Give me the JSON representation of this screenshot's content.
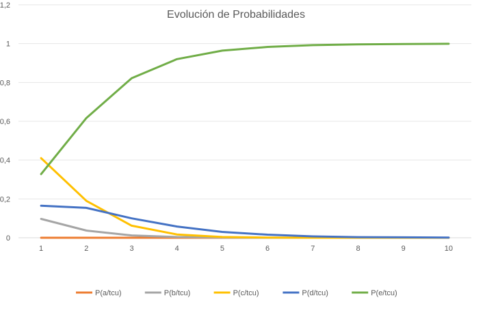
{
  "chart_data": {
    "type": "line",
    "title": "Evolución de Probabilidades",
    "x": [
      "1",
      "2",
      "3",
      "4",
      "5",
      "6",
      "7",
      "8",
      "9",
      "10"
    ],
    "ylim": [
      0,
      1.2
    ],
    "yticks": [
      "0",
      "0,2",
      "0,4",
      "0,6",
      "0,8",
      "1",
      "1,2"
    ],
    "ytick_values": [
      0,
      0.2,
      0.4,
      0.6,
      0.8,
      1.0,
      1.2
    ],
    "grid": true,
    "legend_position": "bottom",
    "series": [
      {
        "name": "P(a/tcu)",
        "color": "#ED7D31",
        "values": [
          0,
          0,
          0,
          0,
          0,
          0,
          0,
          0,
          0,
          0
        ]
      },
      {
        "name": "P(b/tcu)",
        "color": "#A5A5A5",
        "values": [
          0.097,
          0.037,
          0.012,
          0.004,
          0.001,
          0.0,
          0.0,
          0.0,
          0.0,
          0.0
        ]
      },
      {
        "name": "P(c/tcu)",
        "color": "#FFC000",
        "values": [
          0.41,
          0.19,
          0.062,
          0.017,
          0.004,
          0.001,
          0.0,
          0.0,
          0.0,
          0.0
        ]
      },
      {
        "name": "P(d/tcu)",
        "color": "#4472C4",
        "values": [
          0.165,
          0.154,
          0.1,
          0.058,
          0.03,
          0.016,
          0.007,
          0.003,
          0.002,
          0.001
        ]
      },
      {
        "name": "P(e/tcu)",
        "color": "#70AD47",
        "values": [
          0.328,
          0.617,
          0.822,
          0.92,
          0.964,
          0.983,
          0.992,
          0.996,
          0.998,
          0.999
        ]
      }
    ]
  }
}
